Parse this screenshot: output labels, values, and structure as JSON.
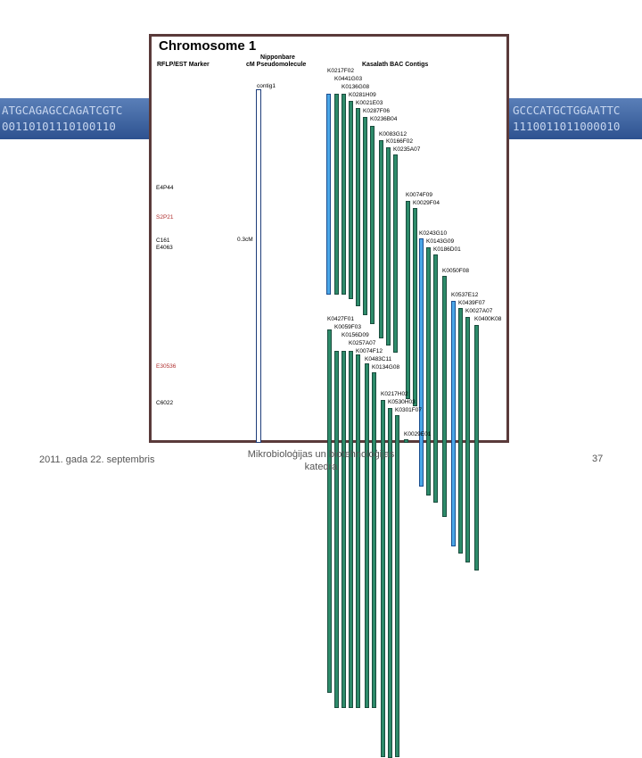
{
  "background_sequence": {
    "left_top": "ATGCAGAGCCAGATCGTC",
    "left_bottom": "00110101110100110",
    "right_top": "GCCCATGCTGGAATTC",
    "right_bottom": "1110011011000010"
  },
  "figure": {
    "title": "Chromosome 1",
    "col_marker": "RFLP/EST Marker",
    "col_pm_line1": "Nipponbare",
    "col_pm_line2": "cM  Pseudomolecule",
    "col_bac": "Kasalath BAC Contigs",
    "contig_label": "contig1",
    "cm_label": "0.3cM",
    "markers": [
      "E4P44",
      "S2P21",
      "C161",
      "E4063",
      "E30536",
      "C6022"
    ],
    "marker_colors": {
      "default": "#000000",
      "highlight": "#b03030"
    },
    "bac_clones": [
      "K0217F02",
      "K0441G03",
      "K0136G08",
      "K0281H09",
      "K0021E03",
      "K0287F06",
      "K0236B04",
      "K0083G12",
      "K0166F02",
      "K0235A07",
      "K0074F09",
      "K0029F04",
      "K0243G10",
      "K0143G09",
      "K0186D01",
      "K0050F08",
      "K0537E12",
      "K0439F07",
      "K0027A07",
      "K0400K08",
      "K0427F01",
      "K0059F03",
      "K0156D09",
      "K0257A07",
      "K0074F12",
      "K0483C11",
      "K0134G08",
      "K0217H02",
      "K0530H03",
      "K0301F07",
      "K0029E01"
    ],
    "colors": {
      "bar_green": "#2d8b6a",
      "bar_blue": "#4aa7e8"
    }
  },
  "footer": {
    "date": "2011. gada 22. septembris",
    "center_line1": "Mikrobioloģijas un biotehnoloģijas",
    "center_line2": "katedra",
    "page_number": "37"
  }
}
